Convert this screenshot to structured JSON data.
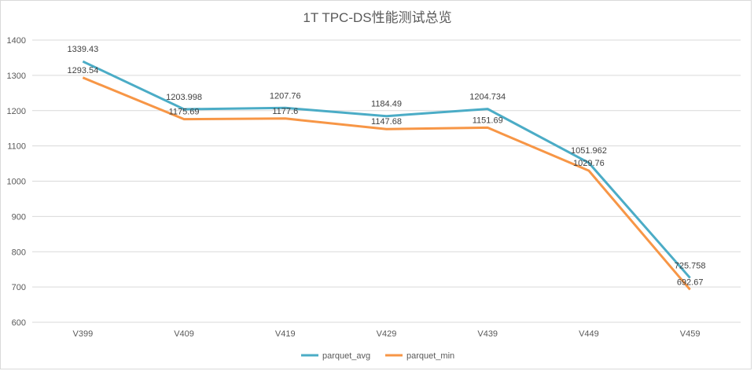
{
  "chart_data": {
    "type": "line",
    "title": "1T TPC-DS性能测试总览",
    "categories": [
      "V399",
      "V409",
      "V419",
      "V429",
      "V439",
      "V449",
      "V459"
    ],
    "series": [
      {
        "name": "parquet_avg",
        "color": "#4BACC6",
        "values": [
          1339.43,
          1203.998,
          1207.76,
          1184.49,
          1204.734,
          1051.962,
          725.758
        ],
        "labels": [
          "1339.43",
          "1203.998",
          "1207.76",
          "1184.49",
          "1204.734",
          "1051.962",
          "725.758"
        ]
      },
      {
        "name": "parquet_min",
        "color": "#F79646",
        "values": [
          1293.54,
          1175.69,
          1177.6,
          1147.68,
          1151.69,
          1029.76,
          692.67
        ],
        "labels": [
          "1293.54",
          "1175.69",
          "1177.6",
          "1147.68",
          "1151.69",
          "1029.76",
          "692.67"
        ]
      }
    ],
    "ylim": [
      600,
      1400
    ],
    "yticks": [
      "600",
      "700",
      "800",
      "900",
      "1000",
      "1100",
      "1200",
      "1300",
      "1400"
    ],
    "grid": true,
    "legend": "bottom",
    "xlabel": "",
    "ylabel": ""
  }
}
